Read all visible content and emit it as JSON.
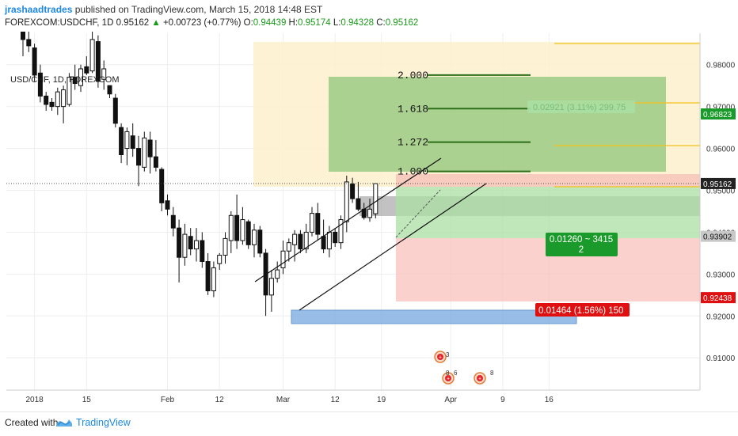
{
  "header": {
    "author": "jrashaadtrades",
    "published_text": "published on TradingView.com, March 15, 2018 14:48 EST",
    "symbol": "FOREXCOM:USDCHF, 1D",
    "last": "0.95162",
    "change_arrow": "▲",
    "change": "+0.00723 (+0.77%)",
    "o_label": "O:",
    "o_val": "0.94439",
    "h_label": "H:",
    "h_val": "0.95174",
    "l_label": "L:",
    "l_val": "0.94328",
    "c_label": "C:",
    "c_val": "0.95162"
  },
  "chart_label": "USD/CHF, 1D, FOREXCOM",
  "footer": {
    "created_with": "Created with",
    "brand": "TradingView"
  },
  "colors": {
    "up_candle": "#ffffff",
    "down_candle": "#111111",
    "green_badge": "#1a9a2a",
    "red_badge": "#e01010",
    "grid": "#eeeeee"
  },
  "chart_data": {
    "type": "candlestick",
    "title": "USD/CHF, 1D, FOREXCOM",
    "ylim": [
      0.9023,
      0.9875
    ],
    "y_ticks": [
      0.91,
      0.92,
      0.93,
      0.94,
      0.95,
      0.96,
      0.97,
      0.98
    ],
    "y_tick_labels": [
      "0.91000",
      "0.92000",
      "0.93000",
      "0.94000",
      "0.95000",
      "0.96000",
      "0.97000",
      "0.98000"
    ],
    "x_tick_labels": [
      "2018",
      "15",
      "Feb",
      "12",
      "Mar",
      "12",
      "19",
      "Apr",
      "9",
      "16"
    ],
    "x_tick_index": [
      2,
      11,
      25,
      34,
      45,
      54,
      62,
      74,
      83,
      91
    ],
    "candles": [
      {
        "i": 0,
        "o": 0.9881,
        "h": 0.99,
        "l": 0.982,
        "c": 0.986
      },
      {
        "i": 1,
        "o": 0.986,
        "h": 0.988,
        "l": 0.983,
        "c": 0.9845
      },
      {
        "i": 2,
        "o": 0.984,
        "h": 0.985,
        "l": 0.976,
        "c": 0.9775
      },
      {
        "i": 3,
        "o": 0.978,
        "h": 0.98,
        "l": 0.971,
        "c": 0.9725
      },
      {
        "i": 4,
        "o": 0.9725,
        "h": 0.9735,
        "l": 0.969,
        "c": 0.9705
      },
      {
        "i": 5,
        "o": 0.971,
        "h": 0.972,
        "l": 0.969,
        "c": 0.97
      },
      {
        "i": 6,
        "o": 0.97,
        "h": 0.9745,
        "l": 0.968,
        "c": 0.9735
      },
      {
        "i": 7,
        "o": 0.97,
        "h": 0.975,
        "l": 0.966,
        "c": 0.974
      },
      {
        "i": 8,
        "o": 0.9705,
        "h": 0.978,
        "l": 0.97,
        "c": 0.977
      },
      {
        "i": 9,
        "o": 0.977,
        "h": 0.98,
        "l": 0.974,
        "c": 0.9755
      },
      {
        "i": 10,
        "o": 0.975,
        "h": 0.98,
        "l": 0.9735,
        "c": 0.979
      },
      {
        "i": 11,
        "o": 0.9795,
        "h": 0.982,
        "l": 0.9775,
        "c": 0.978
      },
      {
        "i": 12,
        "o": 0.9785,
        "h": 0.989,
        "l": 0.978,
        "c": 0.986
      },
      {
        "i": 13,
        "o": 0.9855,
        "h": 0.987,
        "l": 0.9745,
        "c": 0.976
      },
      {
        "i": 14,
        "o": 0.9765,
        "h": 0.981,
        "l": 0.974,
        "c": 0.979
      },
      {
        "i": 15,
        "o": 0.975,
        "h": 0.975,
        "l": 0.972,
        "c": 0.973
      },
      {
        "i": 16,
        "o": 0.972,
        "h": 0.973,
        "l": 0.965,
        "c": 0.966
      },
      {
        "i": 17,
        "o": 0.965,
        "h": 0.966,
        "l": 0.9565,
        "c": 0.9585
      },
      {
        "i": 18,
        "o": 0.96,
        "h": 0.965,
        "l": 0.956,
        "c": 0.964
      },
      {
        "i": 19,
        "o": 0.963,
        "h": 0.966,
        "l": 0.958,
        "c": 0.96
      },
      {
        "i": 20,
        "o": 0.96,
        "h": 0.963,
        "l": 0.951,
        "c": 0.956
      },
      {
        "i": 21,
        "o": 0.9555,
        "h": 0.964,
        "l": 0.9545,
        "c": 0.9625
      },
      {
        "i": 22,
        "o": 0.962,
        "h": 0.964,
        "l": 0.954,
        "c": 0.958
      },
      {
        "i": 23,
        "o": 0.958,
        "h": 0.962,
        "l": 0.9545,
        "c": 0.9555
      },
      {
        "i": 24,
        "o": 0.955,
        "h": 0.9555,
        "l": 0.945,
        "c": 0.947
      },
      {
        "i": 25,
        "o": 0.9475,
        "h": 0.949,
        "l": 0.944,
        "c": 0.9455
      },
      {
        "i": 26,
        "o": 0.944,
        "h": 0.946,
        "l": 0.939,
        "c": 0.941
      },
      {
        "i": 27,
        "o": 0.941,
        "h": 0.943,
        "l": 0.928,
        "c": 0.934
      },
      {
        "i": 28,
        "o": 0.934,
        "h": 0.942,
        "l": 0.932,
        "c": 0.9395
      },
      {
        "i": 29,
        "o": 0.939,
        "h": 0.941,
        "l": 0.9345,
        "c": 0.936
      },
      {
        "i": 30,
        "o": 0.936,
        "h": 0.941,
        "l": 0.933,
        "c": 0.938
      },
      {
        "i": 31,
        "o": 0.938,
        "h": 0.94,
        "l": 0.9315,
        "c": 0.933
      },
      {
        "i": 32,
        "o": 0.933,
        "h": 0.935,
        "l": 0.925,
        "c": 0.926
      },
      {
        "i": 33,
        "o": 0.926,
        "h": 0.933,
        "l": 0.9245,
        "c": 0.9315
      },
      {
        "i": 34,
        "o": 0.9325,
        "h": 0.935,
        "l": 0.931,
        "c": 0.9345
      },
      {
        "i": 35,
        "o": 0.9345,
        "h": 0.94,
        "l": 0.9325,
        "c": 0.9385
      },
      {
        "i": 36,
        "o": 0.938,
        "h": 0.945,
        "l": 0.935,
        "c": 0.944
      },
      {
        "i": 37,
        "o": 0.944,
        "h": 0.949,
        "l": 0.936,
        "c": 0.938
      },
      {
        "i": 38,
        "o": 0.938,
        "h": 0.946,
        "l": 0.937,
        "c": 0.943
      },
      {
        "i": 39,
        "o": 0.9425,
        "h": 0.943,
        "l": 0.936,
        "c": 0.937
      },
      {
        "i": 40,
        "o": 0.937,
        "h": 0.942,
        "l": 0.934,
        "c": 0.9405
      },
      {
        "i": 41,
        "o": 0.9405,
        "h": 0.9415,
        "l": 0.934,
        "c": 0.935
      },
      {
        "i": 42,
        "o": 0.935,
        "h": 0.936,
        "l": 0.92,
        "c": 0.925
      },
      {
        "i": 43,
        "o": 0.925,
        "h": 0.931,
        "l": 0.921,
        "c": 0.929
      },
      {
        "i": 44,
        "o": 0.929,
        "h": 0.933,
        "l": 0.928,
        "c": 0.931
      },
      {
        "i": 45,
        "o": 0.9315,
        "h": 0.938,
        "l": 0.93,
        "c": 0.9355
      },
      {
        "i": 46,
        "o": 0.9355,
        "h": 0.9385,
        "l": 0.933,
        "c": 0.9375
      },
      {
        "i": 47,
        "o": 0.937,
        "h": 0.9405,
        "l": 0.933,
        "c": 0.9395
      },
      {
        "i": 48,
        "o": 0.9395,
        "h": 0.9405,
        "l": 0.935,
        "c": 0.936
      },
      {
        "i": 49,
        "o": 0.936,
        "h": 0.942,
        "l": 0.935,
        "c": 0.94
      },
      {
        "i": 50,
        "o": 0.94,
        "h": 0.946,
        "l": 0.939,
        "c": 0.9445
      },
      {
        "i": 51,
        "o": 0.9445,
        "h": 0.947,
        "l": 0.938,
        "c": 0.9395
      },
      {
        "i": 52,
        "o": 0.939,
        "h": 0.943,
        "l": 0.935,
        "c": 0.936
      },
      {
        "i": 53,
        "o": 0.936,
        "h": 0.9415,
        "l": 0.934,
        "c": 0.94
      },
      {
        "i": 54,
        "o": 0.94,
        "h": 0.941,
        "l": 0.9365,
        "c": 0.9375
      },
      {
        "i": 55,
        "o": 0.9375,
        "h": 0.944,
        "l": 0.936,
        "c": 0.943
      },
      {
        "i": 56,
        "o": 0.9425,
        "h": 0.9535,
        "l": 0.94,
        "c": 0.952
      },
      {
        "i": 57,
        "o": 0.9515,
        "h": 0.953,
        "l": 0.947,
        "c": 0.948
      },
      {
        "i": 58,
        "o": 0.948,
        "h": 0.952,
        "l": 0.945,
        "c": 0.9455
      },
      {
        "i": 59,
        "o": 0.9455,
        "h": 0.947,
        "l": 0.943,
        "c": 0.9435
      },
      {
        "i": 60,
        "o": 0.9435,
        "h": 0.948,
        "l": 0.9425,
        "c": 0.9455
      },
      {
        "i": 61,
        "o": 0.9444,
        "h": 0.9517,
        "l": 0.9433,
        "c": 0.9516
      }
    ],
    "fib_levels": [
      {
        "label": "2.000",
        "price": 0.9775
      },
      {
        "label": "1.618",
        "price": 0.9695
      },
      {
        "label": "1.272",
        "price": 0.9615
      },
      {
        "label": "1.000",
        "price": 0.9545
      }
    ],
    "price_badges": [
      {
        "value": "0.98000",
        "price": 0.98
      },
      {
        "value": "0.96823",
        "price": 0.96823,
        "style": "green"
      },
      {
        "value": "0.95162",
        "price": 0.95162,
        "style": "dark"
      },
      {
        "value": "0.93902",
        "price": 0.93902,
        "style": "gray"
      },
      {
        "value": "0.92438",
        "price": 0.92438,
        "style": "red"
      }
    ],
    "annotations": {
      "target_faded": "0.02921 (3.11%) 299.75",
      "reward_box": "0.01260 ~ 3415",
      "reward_box_sub": "2",
      "risk_box": "0.01464 (1.56%) 150"
    },
    "event_markers": [
      "3",
      "8",
      "6",
      "8"
    ]
  }
}
